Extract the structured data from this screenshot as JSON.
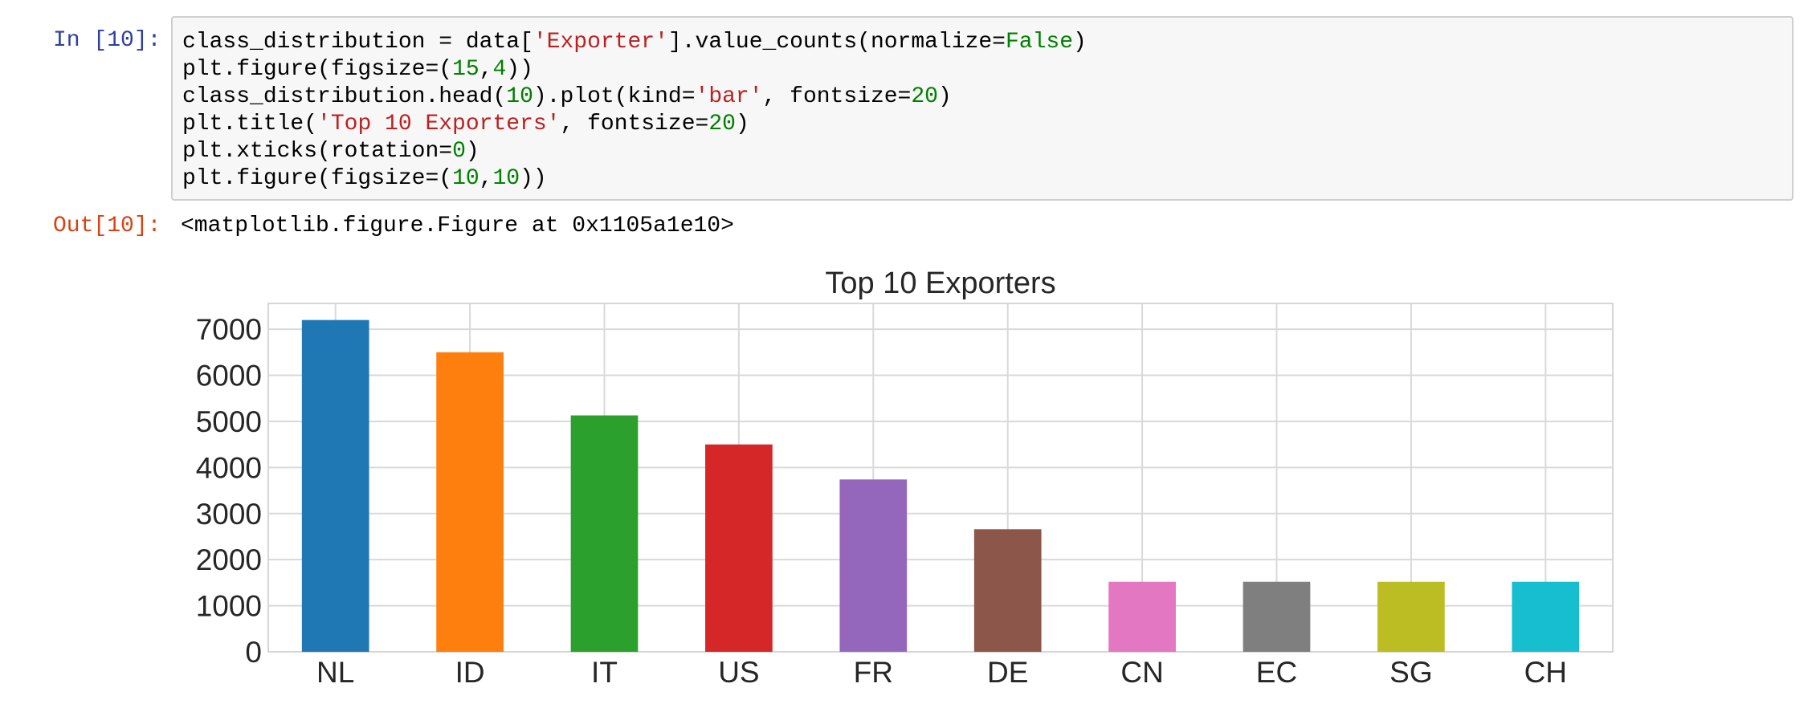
{
  "cell": {
    "in_prompt": "In [10]:",
    "out_prompt": "Out[10]:",
    "code_lines": [
      [
        {
          "t": "class_distribution = data["
        },
        {
          "t": "'Exporter'",
          "c": "s"
        },
        {
          "t": "].value_counts(normalize="
        },
        {
          "t": "False",
          "c": "k"
        },
        {
          "t": ")"
        }
      ],
      [
        {
          "t": "plt.figure(figsize=("
        },
        {
          "t": "15",
          "c": "n"
        },
        {
          "t": ","
        },
        {
          "t": "4",
          "c": "n"
        },
        {
          "t": "))"
        }
      ],
      [
        {
          "t": "class_distribution.head("
        },
        {
          "t": "10",
          "c": "n"
        },
        {
          "t": ").plot(kind="
        },
        {
          "t": "'bar'",
          "c": "s"
        },
        {
          "t": ", fontsize="
        },
        {
          "t": "20",
          "c": "n"
        },
        {
          "t": ")"
        }
      ],
      [
        {
          "t": "plt.title("
        },
        {
          "t": "'Top 10 Exporters'",
          "c": "s"
        },
        {
          "t": ", fontsize="
        },
        {
          "t": "20",
          "c": "n"
        },
        {
          "t": ")"
        }
      ],
      [
        {
          "t": "plt.xticks(rotation="
        },
        {
          "t": "0",
          "c": "n"
        },
        {
          "t": ")"
        }
      ],
      [
        {
          "t": "plt.figure(figsize=("
        },
        {
          "t": "10",
          "c": "n"
        },
        {
          "t": ","
        },
        {
          "t": "10",
          "c": "n"
        },
        {
          "t": "))"
        }
      ]
    ],
    "output_text": "<matplotlib.figure.Figure at 0x1105a1e10>"
  },
  "colors": {
    "in_prompt": "#303f9f",
    "out_prompt": "#d84315",
    "string": "#ba2121",
    "number": "#008000",
    "grid": "#d9d9d9",
    "axis_text": "#262626"
  },
  "chart_data": {
    "type": "bar",
    "title": "Top 10 Exporters",
    "xlabel": "",
    "ylabel": "",
    "categories": [
      "NL",
      "ID",
      "IT",
      "US",
      "FR",
      "DE",
      "CN",
      "EC",
      "SG",
      "CH"
    ],
    "values": [
      7200,
      6500,
      5130,
      4500,
      3740,
      2660,
      1520,
      1520,
      1520,
      1520
    ],
    "bar_colors": [
      "#1f77b4",
      "#ff7f0e",
      "#2ca02c",
      "#d62728",
      "#9467bd",
      "#8c564b",
      "#e377c2",
      "#7f7f7f",
      "#bcbd22",
      "#17becf"
    ],
    "yticks": [
      0,
      1000,
      2000,
      3000,
      4000,
      5000,
      6000,
      7000
    ],
    "ylim": [
      0,
      7560
    ],
    "grid": true,
    "legend": "none"
  }
}
